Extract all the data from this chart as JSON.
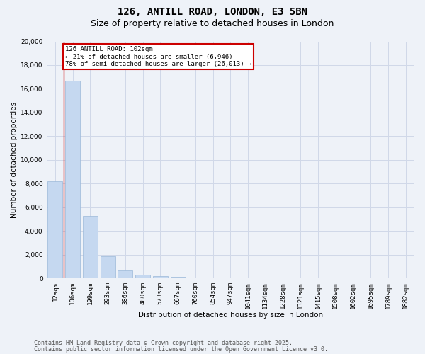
{
  "title_line1": "126, ANTILL ROAD, LONDON, E3 5BN",
  "title_line2": "Size of property relative to detached houses in London",
  "xlabel": "Distribution of detached houses by size in London",
  "ylabel": "Number of detached properties",
  "categories": [
    "12sqm",
    "106sqm",
    "199sqm",
    "293sqm",
    "386sqm",
    "480sqm",
    "573sqm",
    "667sqm",
    "760sqm",
    "854sqm",
    "947sqm",
    "1041sqm",
    "1134sqm",
    "1228sqm",
    "1321sqm",
    "1415sqm",
    "1508sqm",
    "1602sqm",
    "1695sqm",
    "1789sqm",
    "1882sqm"
  ],
  "values": [
    8200,
    16700,
    5300,
    1900,
    650,
    330,
    195,
    130,
    100,
    0,
    0,
    0,
    0,
    0,
    0,
    0,
    0,
    0,
    0,
    0,
    0
  ],
  "bar_color": "#c5d8f0",
  "bar_edge_color": "#9ab8d8",
  "grid_color": "#d0d8e8",
  "background_color": "#eef2f8",
  "annotation_text": "126 ANTILL ROAD: 102sqm\n← 21% of detached houses are smaller (6,946)\n78% of semi-detached houses are larger (26,013) →",
  "annotation_box_color": "#ffffff",
  "annotation_box_edge": "#cc0000",
  "vline_x": 0.5,
  "vline_color": "#cc0000",
  "ylim": [
    0,
    20000
  ],
  "yticks": [
    0,
    2000,
    4000,
    6000,
    8000,
    10000,
    12000,
    14000,
    16000,
    18000,
    20000
  ],
  "footer_line1": "Contains HM Land Registry data © Crown copyright and database right 2025.",
  "footer_line2": "Contains public sector information licensed under the Open Government Licence v3.0.",
  "title_fontsize": 10,
  "subtitle_fontsize": 9,
  "label_fontsize": 7.5,
  "tick_fontsize": 6.5,
  "annotation_fontsize": 6.5,
  "footer_fontsize": 6
}
